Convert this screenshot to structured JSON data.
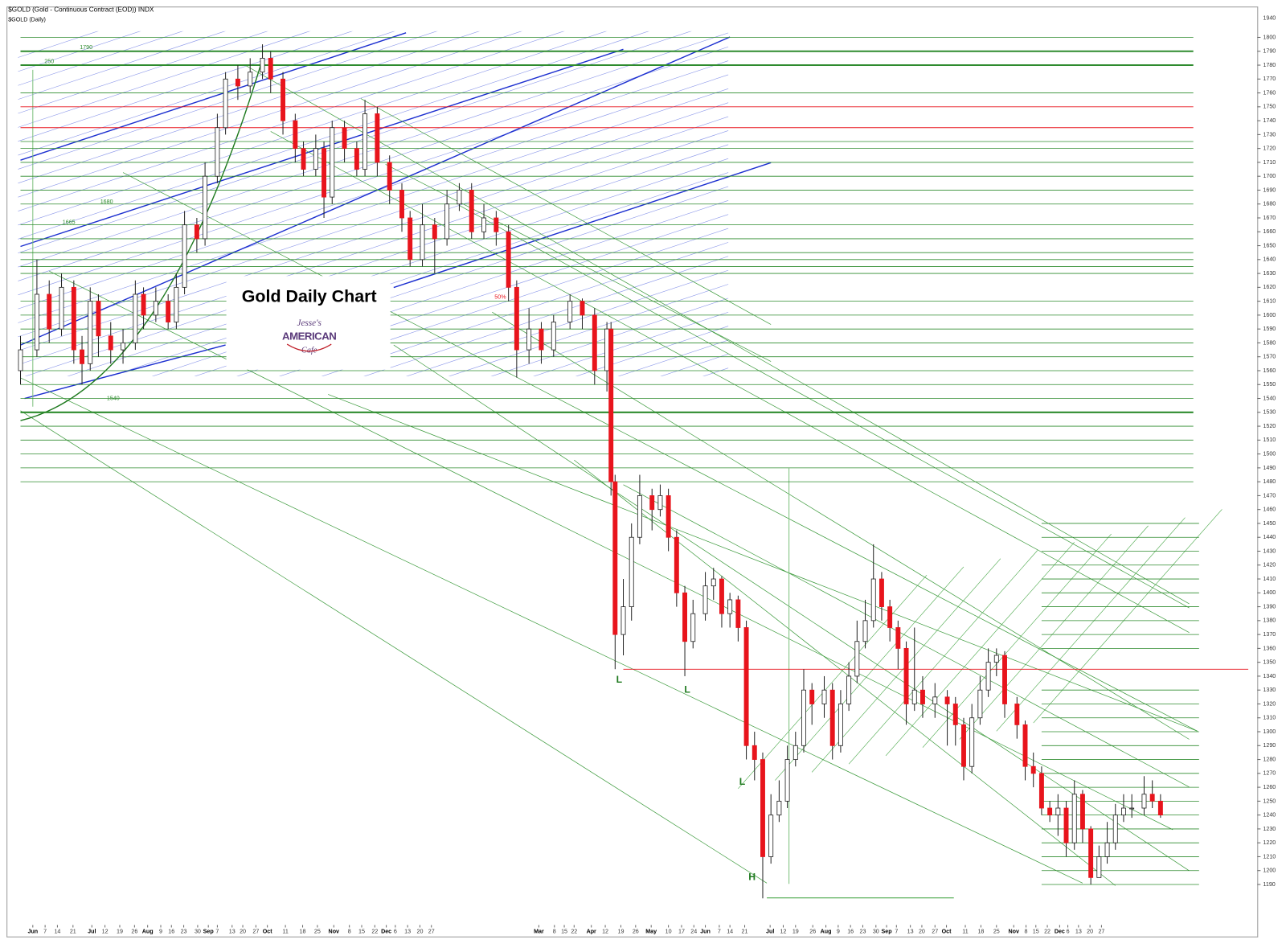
{
  "chart_data": {
    "type": "candlestick",
    "title": "$GOLD (Gold - Continuous Contract (EOD)) INDX",
    "subtitle": "$GOLD (Daily)",
    "heading": "Gold Daily Chart",
    "logo": [
      "Jesse's",
      "AMERICAN",
      "Cafe"
    ],
    "axis_top_label": "1940",
    "annotations": [
      "L",
      "L",
      "L",
      "H",
      "50%",
      "1790",
      "250",
      "1680",
      "1665",
      "1540"
    ],
    "up_color": "#ffffff",
    "down_color": "#e8141c",
    "level_color": "#2e8b2e",
    "red_level_color": "#e8141c",
    "x": [
      25,
      45,
      60,
      75,
      90,
      100,
      110,
      120,
      135,
      150,
      165,
      175,
      190,
      205,
      215,
      225,
      240,
      250,
      265,
      275,
      290,
      305,
      320,
      330,
      345,
      360,
      370,
      385,
      395,
      405,
      420,
      435,
      445,
      460,
      475,
      490,
      500,
      515,
      530,
      545,
      560,
      575,
      590,
      605,
      620,
      630,
      645,
      660,
      675,
      695,
      710,
      725,
      740,
      745,
      750,
      760,
      770,
      780,
      795,
      805,
      815,
      825,
      835,
      845,
      860,
      870,
      880,
      890,
      900,
      910,
      920,
      930,
      940,
      950,
      960,
      970,
      980,
      990,
      1005,
      1015,
      1025,
      1035,
      1045,
      1055,
      1065,
      1075,
      1085,
      1095,
      1105,
      1115,
      1125,
      1140,
      1155,
      1165,
      1175,
      1185,
      1195,
      1205,
      1215,
      1225,
      1240,
      1250,
      1260,
      1270,
      1280,
      1290,
      1300,
      1310,
      1320,
      1330,
      1340,
      1350,
      1360,
      1370,
      1380,
      1395,
      1405,
      1415
    ],
    "open": [
      1560,
      1575,
      1615,
      1590,
      1620,
      1575,
      1565,
      1610,
      1585,
      1575,
      1580,
      1615,
      1600,
      1610,
      1595,
      1620,
      1665,
      1655,
      1700,
      1735,
      1770,
      1765,
      1775,
      1785,
      1770,
      1740,
      1720,
      1705,
      1720,
      1685,
      1735,
      1720,
      1705,
      1745,
      1710,
      1690,
      1670,
      1640,
      1665,
      1655,
      1680,
      1690,
      1660,
      1670,
      1660,
      1620,
      1575,
      1590,
      1575,
      1595,
      1610,
      1600,
      1560,
      1590,
      1480,
      1370,
      1390,
      1440,
      1470,
      1460,
      1470,
      1440,
      1400,
      1365,
      1385,
      1405,
      1410,
      1385,
      1395,
      1375,
      1290,
      1280,
      1210,
      1240,
      1250,
      1280,
      1290,
      1330,
      1320,
      1330,
      1290,
      1320,
      1340,
      1365,
      1380,
      1410,
      1390,
      1375,
      1360,
      1320,
      1330,
      1320,
      1325,
      1320,
      1305,
      1275,
      1310,
      1330,
      1350,
      1355,
      1320,
      1305,
      1275,
      1270,
      1245,
      1240,
      1245,
      1220,
      1255,
      1230,
      1195,
      1210,
      1220,
      1240,
      1245,
      1245,
      1255,
      1250
    ],
    "high": [
      1585,
      1640,
      1625,
      1630,
      1625,
      1585,
      1620,
      1615,
      1595,
      1590,
      1625,
      1620,
      1620,
      1615,
      1630,
      1675,
      1670,
      1710,
      1745,
      1775,
      1780,
      1785,
      1795,
      1790,
      1775,
      1745,
      1725,
      1730,
      1725,
      1740,
      1740,
      1725,
      1755,
      1750,
      1715,
      1695,
      1675,
      1680,
      1670,
      1690,
      1695,
      1695,
      1680,
      1675,
      1665,
      1625,
      1605,
      1595,
      1600,
      1615,
      1612,
      1605,
      1595,
      1595,
      1485,
      1410,
      1450,
      1485,
      1475,
      1478,
      1475,
      1445,
      1405,
      1395,
      1415,
      1418,
      1412,
      1400,
      1398,
      1380,
      1300,
      1285,
      1255,
      1265,
      1290,
      1300,
      1345,
      1335,
      1340,
      1335,
      1330,
      1350,
      1380,
      1395,
      1435,
      1415,
      1395,
      1380,
      1365,
      1375,
      1340,
      1335,
      1330,
      1325,
      1310,
      1320,
      1340,
      1360,
      1360,
      1358,
      1325,
      1308,
      1285,
      1275,
      1250,
      1255,
      1250,
      1265,
      1258,
      1232,
      1218,
      1235,
      1248,
      1255,
      1255,
      1268,
      1265,
      1255
    ],
    "low": [
      1550,
      1570,
      1580,
      1585,
      1565,
      1550,
      1560,
      1570,
      1565,
      1565,
      1575,
      1590,
      1595,
      1590,
      1590,
      1615,
      1645,
      1650,
      1695,
      1730,
      1755,
      1760,
      1770,
      1760,
      1730,
      1710,
      1700,
      1700,
      1670,
      1680,
      1710,
      1700,
      1700,
      1700,
      1680,
      1660,
      1635,
      1635,
      1630,
      1650,
      1675,
      1655,
      1655,
      1650,
      1610,
      1555,
      1565,
      1565,
      1570,
      1590,
      1590,
      1550,
      1545,
      1470,
      1345,
      1355,
      1380,
      1435,
      1445,
      1455,
      1430,
      1390,
      1340,
      1360,
      1380,
      1395,
      1375,
      1375,
      1365,
      1280,
      1265,
      1180,
      1205,
      1235,
      1245,
      1275,
      1285,
      1305,
      1310,
      1280,
      1285,
      1315,
      1335,
      1360,
      1375,
      1380,
      1365,
      1345,
      1305,
      1315,
      1310,
      1310,
      1290,
      1290,
      1265,
      1270,
      1305,
      1325,
      1340,
      1310,
      1295,
      1265,
      1260,
      1240,
      1235,
      1225,
      1210,
      1215,
      1220,
      1190,
      1195,
      1205,
      1215,
      1235,
      1238,
      1240,
      1245,
      1238
    ],
    "close": [
      1575,
      1615,
      1590,
      1620,
      1575,
      1565,
      1610,
      1585,
      1575,
      1580,
      1615,
      1600,
      1610,
      1595,
      1620,
      1665,
      1655,
      1700,
      1735,
      1770,
      1765,
      1775,
      1785,
      1770,
      1740,
      1720,
      1705,
      1720,
      1685,
      1735,
      1720,
      1705,
      1745,
      1710,
      1690,
      1670,
      1640,
      1665,
      1655,
      1680,
      1690,
      1660,
      1670,
      1660,
      1620,
      1575,
      1590,
      1575,
      1595,
      1610,
      1600,
      1560,
      1590,
      1480,
      1370,
      1390,
      1440,
      1470,
      1460,
      1470,
      1440,
      1400,
      1365,
      1385,
      1405,
      1410,
      1385,
      1395,
      1375,
      1290,
      1280,
      1210,
      1240,
      1250,
      1280,
      1290,
      1330,
      1320,
      1330,
      1290,
      1320,
      1340,
      1365,
      1380,
      1410,
      1390,
      1375,
      1360,
      1320,
      1330,
      1320,
      1325,
      1320,
      1305,
      1275,
      1310,
      1330,
      1350,
      1355,
      1320,
      1305,
      1275,
      1270,
      1245,
      1240,
      1245,
      1220,
      1255,
      1230,
      1195,
      1210,
      1220,
      1240,
      1245,
      1245,
      1255,
      1250,
      1240
    ],
    "levels": [
      1800,
      1790,
      1780,
      1760,
      1725,
      1720,
      1710,
      1700,
      1690,
      1680,
      1665,
      1655,
      1645,
      1640,
      1635,
      1630,
      1610,
      1600,
      1590,
      1580,
      1570,
      1560,
      1550,
      1540,
      1530,
      1520,
      1510,
      1500,
      1490,
      1480,
      1450,
      1440,
      1430,
      1420,
      1410,
      1400,
      1390,
      1380,
      1370,
      1360,
      1330,
      1320,
      1310,
      1300,
      1290,
      1280,
      1270,
      1260,
      1250,
      1240,
      1230,
      1220,
      1210,
      1200,
      1190
    ],
    "red_levels": [
      1750,
      1735,
      1345
    ],
    "xlim": [
      10,
      1530
    ],
    "ylim": [
      1162,
      1821
    ],
    "yticks": [
      1190,
      1200,
      1210,
      1220,
      1230,
      1240,
      1250,
      1260,
      1270,
      1280,
      1290,
      1300,
      1310,
      1320,
      1330,
      1340,
      1350,
      1360,
      1370,
      1380,
      1390,
      1400,
      1410,
      1420,
      1430,
      1440,
      1450,
      1460,
      1470,
      1480,
      1490,
      1500,
      1510,
      1520,
      1530,
      1540,
      1550,
      1560,
      1570,
      1580,
      1590,
      1600,
      1610,
      1620,
      1630,
      1640,
      1650,
      1660,
      1670,
      1680,
      1690,
      1700,
      1710,
      1720,
      1730,
      1740,
      1750,
      1760,
      1770,
      1780,
      1790,
      1800
    ],
    "xticks": [
      {
        "value": 40,
        "label": "Jun"
      },
      {
        "value": 55,
        "label": "7"
      },
      {
        "value": 70,
        "label": "14"
      },
      {
        "value": 89,
        "label": "21"
      },
      {
        "value": 112,
        "label": "Jul"
      },
      {
        "value": 128,
        "label": "12"
      },
      {
        "value": 146,
        "label": "19"
      },
      {
        "value": 164,
        "label": "26"
      },
      {
        "value": 180,
        "label": "Aug"
      },
      {
        "value": 196,
        "label": "9"
      },
      {
        "value": 209,
        "label": "16"
      },
      {
        "value": 224,
        "label": "23"
      },
      {
        "value": 241,
        "label": "30"
      },
      {
        "value": 254,
        "label": "Sep"
      },
      {
        "value": 265,
        "label": "7"
      },
      {
        "value": 283,
        "label": "13"
      },
      {
        "value": 296,
        "label": "20"
      },
      {
        "value": 312,
        "label": "27"
      },
      {
        "value": 326,
        "label": "Oct"
      },
      {
        "value": 348,
        "label": "11"
      },
      {
        "value": 369,
        "label": "18"
      },
      {
        "value": 387,
        "label": "25"
      },
      {
        "value": 407,
        "label": "Nov"
      },
      {
        "value": 426,
        "label": "8"
      },
      {
        "value": 441,
        "label": "15"
      },
      {
        "value": 457,
        "label": "22"
      },
      {
        "value": 471,
        "label": "Dec"
      },
      {
        "value": 482,
        "label": "6"
      },
      {
        "value": 497,
        "label": "13"
      },
      {
        "value": 512,
        "label": "20"
      },
      {
        "value": 526,
        "label": "27"
      },
      {
        "value": 657,
        "label": "Mar"
      },
      {
        "value": 676,
        "label": "8"
      },
      {
        "value": 688,
        "label": "15"
      },
      {
        "value": 700,
        "label": "22"
      },
      {
        "value": 721,
        "label": "Apr"
      },
      {
        "value": 738,
        "label": "12"
      },
      {
        "value": 757,
        "label": "19"
      },
      {
        "value": 775,
        "label": "26"
      },
      {
        "value": 794,
        "label": "May"
      },
      {
        "value": 815,
        "label": "10"
      },
      {
        "value": 831,
        "label": "17"
      },
      {
        "value": 846,
        "label": "24"
      },
      {
        "value": 860,
        "label": "Jun"
      },
      {
        "value": 877,
        "label": "7"
      },
      {
        "value": 890,
        "label": "14"
      },
      {
        "value": 908,
        "label": "21"
      },
      {
        "value": 939,
        "label": "Jul"
      },
      {
        "value": 955,
        "label": "12"
      },
      {
        "value": 970,
        "label": "19"
      },
      {
        "value": 991,
        "label": "26"
      },
      {
        "value": 1007,
        "label": "Aug"
      },
      {
        "value": 1022,
        "label": "9"
      },
      {
        "value": 1037,
        "label": "16"
      },
      {
        "value": 1052,
        "label": "23"
      },
      {
        "value": 1068,
        "label": "30"
      },
      {
        "value": 1081,
        "label": "Sep"
      },
      {
        "value": 1093,
        "label": "7"
      },
      {
        "value": 1110,
        "label": "13"
      },
      {
        "value": 1124,
        "label": "20"
      },
      {
        "value": 1140,
        "label": "27"
      },
      {
        "value": 1154,
        "label": "Oct"
      },
      {
        "value": 1177,
        "label": "11"
      },
      {
        "value": 1196,
        "label": "18"
      },
      {
        "value": 1215,
        "label": "25"
      },
      {
        "value": 1236,
        "label": "Nov"
      },
      {
        "value": 1251,
        "label": "8"
      },
      {
        "value": 1263,
        "label": "15"
      },
      {
        "value": 1277,
        "label": "22"
      },
      {
        "value": 1292,
        "label": "Dec"
      },
      {
        "value": 1302,
        "label": "6"
      },
      {
        "value": 1315,
        "label": "13"
      },
      {
        "value": 1329,
        "label": "20"
      },
      {
        "value": 1343,
        "label": "27"
      }
    ]
  }
}
